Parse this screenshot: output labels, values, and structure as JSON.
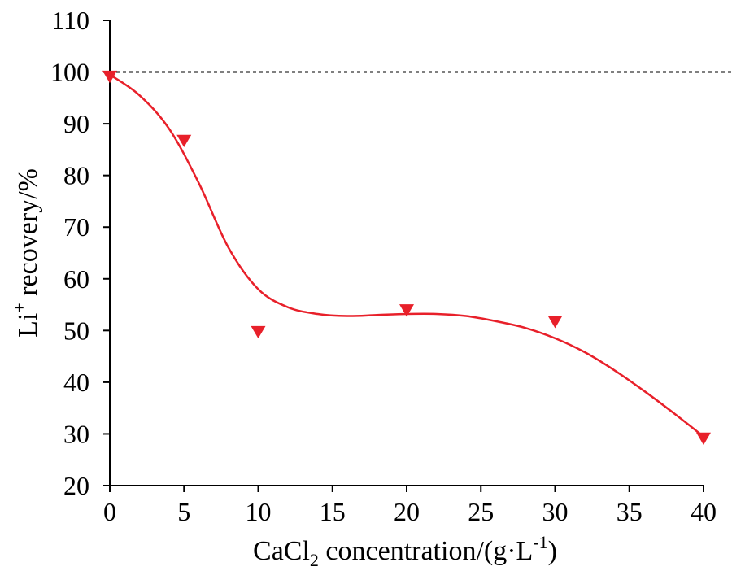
{
  "chart_data": {
    "type": "scatter",
    "xlabel": {
      "main": "CaCl",
      "sub": "2",
      "rest": " concentration/(g·L",
      "sup": "-1",
      "close": ")"
    },
    "ylabel": {
      "main": "Li",
      "sup": "+",
      "rest": " recovery/%"
    },
    "xlim": [
      0,
      40
    ],
    "ylim": [
      20,
      110
    ],
    "xticks": [
      0,
      5,
      10,
      15,
      20,
      25,
      30,
      35,
      40
    ],
    "yticks": [
      20,
      30,
      40,
      50,
      60,
      70,
      80,
      90,
      100,
      110
    ],
    "grid": false,
    "series": [
      {
        "marker": "triangle-down",
        "color": "#e8202a",
        "points": [
          {
            "x": 0,
            "y": 99.2
          },
          {
            "x": 5,
            "y": 86.8
          },
          {
            "x": 10,
            "y": 49.8
          },
          {
            "x": 20,
            "y": 54.0
          },
          {
            "x": 30,
            "y": 51.8
          },
          {
            "x": 40,
            "y": 29.2
          }
        ]
      }
    ],
    "fit_curve": {
      "color": "#e8202a",
      "points": [
        {
          "x": 0,
          "y": 99.5
        },
        {
          "x": 2,
          "y": 95.5
        },
        {
          "x": 4,
          "y": 89.0
        },
        {
          "x": 6,
          "y": 78.5
        },
        {
          "x": 8,
          "y": 66.0
        },
        {
          "x": 10,
          "y": 58.0
        },
        {
          "x": 12,
          "y": 54.5
        },
        {
          "x": 14,
          "y": 53.2
        },
        {
          "x": 16,
          "y": 52.8
        },
        {
          "x": 18,
          "y": 53.0
        },
        {
          "x": 20,
          "y": 53.2
        },
        {
          "x": 22,
          "y": 53.2
        },
        {
          "x": 24,
          "y": 52.8
        },
        {
          "x": 26,
          "y": 51.8
        },
        {
          "x": 28,
          "y": 50.5
        },
        {
          "x": 30,
          "y": 48.5
        },
        {
          "x": 32,
          "y": 45.8
        },
        {
          "x": 34,
          "y": 42.3
        },
        {
          "x": 36,
          "y": 38.3
        },
        {
          "x": 38,
          "y": 34.0
        },
        {
          "x": 40,
          "y": 29.5
        }
      ]
    },
    "reference_line": {
      "y": 100,
      "style": "dashed",
      "color": "#000000"
    }
  }
}
